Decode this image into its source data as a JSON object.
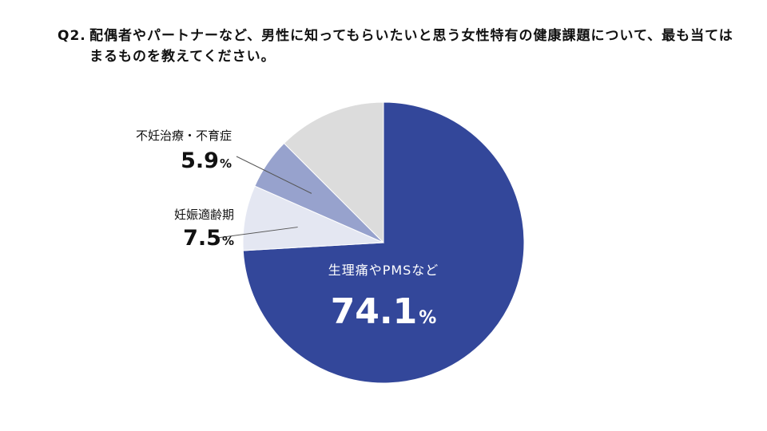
{
  "question": {
    "number": "Q2.",
    "text": "配偶者やパートナーなど、男性に知ってもらいたいと思う女性特有の健康課題について、最も当てはまるものを教えてください。"
  },
  "colors": {
    "slice_main": "#33479a",
    "slice_pregnancy": "#e4e7f2",
    "slice_fertility": "#97a2cd",
    "slice_other": "#dcdcdc",
    "text_dark": "#111111",
    "text_white": "#ffffff",
    "leader_line": "#555555"
  },
  "chart_data": {
    "type": "pie",
    "title": "",
    "start_angle_deg": 0,
    "direction": "clockwise",
    "slices": [
      {
        "label": "生理痛やPMSなど",
        "value": 74.1,
        "value_label": "74.1",
        "unit": "%",
        "color": "#33479a",
        "label_inside": true
      },
      {
        "label": "妊娠適齢期",
        "value": 7.5,
        "value_label": "7.5",
        "unit": "%",
        "color": "#e4e7f2",
        "label_inside": false
      },
      {
        "label": "不妊治療・不育症",
        "value": 5.9,
        "value_label": "5.9",
        "unit": "%",
        "color": "#97a2cd",
        "label_inside": false
      },
      {
        "label": "",
        "value": 12.5,
        "value_label": "",
        "unit": "",
        "color": "#dcdcdc",
        "label_inside": false
      }
    ]
  }
}
